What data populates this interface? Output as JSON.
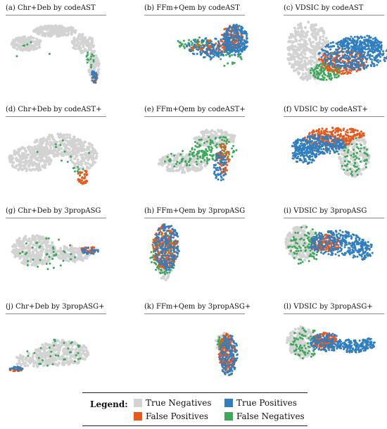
{
  "colors": {
    "true_negative": "#d3d3d3",
    "false_positive": "#e8581a",
    "true_positive": "#2f7ec0",
    "false_negative": "#3ca85a"
  },
  "legend": {
    "title": "Legend:",
    "items": [
      {
        "label": "True Negatives",
        "color_key": "true_negative"
      },
      {
        "label": "True Positives",
        "color_key": "true_positive"
      },
      {
        "label": "False Positives",
        "color_key": "false_positive"
      },
      {
        "label": "False Negatives",
        "color_key": "false_negative"
      }
    ]
  },
  "chart_data": [
    {
      "type": "scatter",
      "letter": "(a)",
      "caption": "Chr+Deb by codeAST",
      "xlabel": "",
      "ylabel": "",
      "grid": false,
      "axes": false
    },
    {
      "type": "scatter",
      "letter": "(b)",
      "caption": "FFm+Qem by codeAST",
      "xlabel": "",
      "ylabel": "",
      "grid": false,
      "axes": false
    },
    {
      "type": "scatter",
      "letter": "(c)",
      "caption": "VDSIC by codeAST",
      "xlabel": "",
      "ylabel": "",
      "grid": false,
      "axes": false
    },
    {
      "type": "scatter",
      "letter": "(d)",
      "caption": "Chr+Deb by codeAST+",
      "xlabel": "",
      "ylabel": "",
      "grid": false,
      "axes": false
    },
    {
      "type": "scatter",
      "letter": "(e)",
      "caption": "FFm+Qem by codeAST+",
      "xlabel": "",
      "ylabel": "",
      "grid": false,
      "axes": false
    },
    {
      "type": "scatter",
      "letter": "(f)",
      "caption": "VDSIC by codeAST+",
      "xlabel": "",
      "ylabel": "",
      "grid": false,
      "axes": false
    },
    {
      "type": "scatter",
      "letter": "(g)",
      "caption": "Chr+Deb by 3propASG",
      "xlabel": "",
      "ylabel": "",
      "grid": false,
      "axes": false
    },
    {
      "type": "scatter",
      "letter": "(h)",
      "caption": "FFm+Qem by 3propASG",
      "xlabel": "",
      "ylabel": "",
      "grid": false,
      "axes": false
    },
    {
      "type": "scatter",
      "letter": "(i)",
      "caption": "VDSIC by 3propASG",
      "xlabel": "",
      "ylabel": "",
      "grid": false,
      "axes": false
    },
    {
      "type": "scatter",
      "letter": "(j)",
      "caption": "Chr+Deb by 3propASG+",
      "xlabel": "",
      "ylabel": "",
      "grid": false,
      "axes": false
    },
    {
      "type": "scatter",
      "letter": "(k)",
      "caption": "FFm+Qem by 3propASG+",
      "xlabel": "",
      "ylabel": "",
      "grid": false,
      "axes": false
    },
    {
      "type": "scatter",
      "letter": "(l)",
      "caption": "VDSIC by 3propASG+",
      "xlabel": "",
      "ylabel": "",
      "grid": false,
      "axes": false
    }
  ]
}
